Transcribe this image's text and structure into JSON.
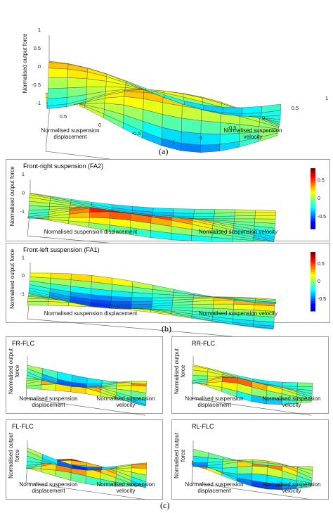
{
  "captions": {
    "a": "(a)",
    "b": "(b)",
    "c": "(c)"
  },
  "panel_a": {
    "zlabel": "Normalised output force",
    "xlabel": "Normalised  suspension\ndisplacement",
    "ylabel": "Normalised  suspension\nvelocity",
    "zticks": [
      "1",
      "0.5",
      "0",
      "-0.5",
      "-1"
    ],
    "xticks": [
      "0.5",
      "0",
      "-0.5",
      "-1"
    ],
    "yticks": [
      "-1",
      "-0.5",
      "0",
      "0.5",
      "1"
    ]
  },
  "panel_b": [
    {
      "title": "Front-right suspension (FA2)",
      "zlabel": "Normalised output force",
      "xlabel": "Normalised  suspension displacement",
      "ylabel": "Normalised  suspension velocity",
      "cbar_ticks": [
        "0.5",
        "0",
        "-0.5"
      ]
    },
    {
      "title": "Front-left suspension (FA1)",
      "zlabel": "Normalised output force",
      "xlabel": "Normalised  suspension displacement",
      "ylabel": "Normalised  suspension velocity",
      "cbar_ticks": [
        "0.5",
        "0",
        "-0.5"
      ]
    }
  ],
  "panel_c": [
    {
      "title": "FR-FLC"
    },
    {
      "title": "RR-FLC"
    },
    {
      "title": "FL-FLC"
    },
    {
      "title": "RL-FLC"
    }
  ],
  "panel_c_labels": {
    "zlabel": "Normalised output\nforce",
    "xlabel": "Normalised  suspension\ndisplacement",
    "ylabel": "Normalised  suspension\nvelocity"
  },
  "colormap": [
    "#00007f",
    "#0000ff",
    "#007fff",
    "#00ffff",
    "#7fff7f",
    "#ffff00",
    "#ff7f00",
    "#ff0000",
    "#7f0000"
  ],
  "chart_data": [
    {
      "type": "heatmap",
      "subtype": "3d-surface",
      "panel": "a",
      "xlabel": "Normalised  suspension displacement",
      "ylabel": "Normalised  suspension velocity",
      "zlabel": "Normalised output force",
      "xlim": [
        -1,
        1
      ],
      "ylim": [
        -1,
        1
      ],
      "zlim": [
        -1,
        1
      ]
    },
    {
      "type": "heatmap",
      "subtype": "3d-surface",
      "panel": "b-top",
      "title": "Front-right suspension (FA2)",
      "xlim": [
        -1,
        1
      ],
      "ylim": [
        -1,
        1
      ],
      "zlim": [
        -1,
        1
      ]
    },
    {
      "type": "heatmap",
      "subtype": "3d-surface",
      "panel": "b-bottom",
      "title": "Front-left suspension (FA1)",
      "xlim": [
        -1,
        1
      ],
      "ylim": [
        -1,
        1
      ],
      "zlim": [
        -1,
        1
      ]
    },
    {
      "type": "heatmap",
      "subtype": "3d-surface",
      "panel": "c",
      "title": "FR-FLC"
    },
    {
      "type": "heatmap",
      "subtype": "3d-surface",
      "panel": "c",
      "title": "RR-FLC"
    },
    {
      "type": "heatmap",
      "subtype": "3d-surface",
      "panel": "c",
      "title": "FL-FLC"
    },
    {
      "type": "heatmap",
      "subtype": "3d-surface",
      "panel": "c",
      "title": "RL-FLC"
    }
  ]
}
